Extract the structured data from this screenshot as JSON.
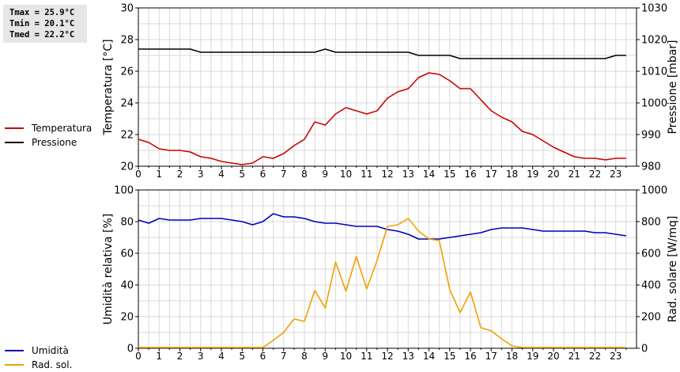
{
  "stats": {
    "tmax": "Tmax = 25.9°C",
    "tmin": "Tmin = 20.1°C",
    "tmed": "Tmed = 22.2°C"
  },
  "colors": {
    "temperature": "#cc0000",
    "pressure": "#000000",
    "humidity": "#0000b4",
    "radiation": "#f0a000",
    "grid": "#d8d8d8"
  },
  "chart_data": [
    {
      "type": "line",
      "x": [
        0,
        0.5,
        1,
        1.5,
        2,
        2.5,
        3,
        3.5,
        4,
        4.5,
        5,
        5.5,
        6,
        6.5,
        7,
        7.5,
        8,
        8.5,
        9,
        9.5,
        10,
        10.5,
        11,
        11.5,
        12,
        12.5,
        13,
        13.5,
        14,
        14.5,
        15,
        15.5,
        16,
        16.5,
        17,
        17.5,
        18,
        18.5,
        19,
        19.5,
        20,
        20.5,
        21,
        21.5,
        22,
        22.5,
        23,
        23.5
      ],
      "series": [
        {
          "name": "Temperatura",
          "axis": "left",
          "values": [
            21.7,
            21.5,
            21.1,
            21.0,
            21.0,
            20.9,
            20.6,
            20.5,
            20.3,
            20.2,
            20.1,
            20.2,
            20.6,
            20.5,
            20.8,
            21.3,
            21.7,
            22.8,
            22.6,
            23.3,
            23.7,
            23.5,
            23.3,
            23.5,
            24.3,
            24.7,
            24.9,
            25.6,
            25.9,
            25.8,
            25.4,
            24.9,
            24.9,
            24.2,
            23.5,
            23.1,
            22.8,
            22.2,
            22.0,
            21.6,
            21.2,
            20.9,
            20.6,
            20.5,
            20.5,
            20.4,
            20.5,
            20.5
          ]
        },
        {
          "name": "Pressione",
          "axis": "right",
          "values": [
            1017,
            1017,
            1017,
            1017,
            1017,
            1017,
            1016,
            1016,
            1016,
            1016,
            1016,
            1016,
            1016,
            1016,
            1016,
            1016,
            1016,
            1016,
            1017,
            1016,
            1016,
            1016,
            1016,
            1016,
            1016,
            1016,
            1016,
            1015,
            1015,
            1015,
            1015,
            1014,
            1014,
            1014,
            1014,
            1014,
            1014,
            1014,
            1014,
            1014,
            1014,
            1014,
            1014,
            1014,
            1014,
            1014,
            1015,
            1015
          ]
        }
      ],
      "xlim": [
        0,
        24
      ],
      "xticks": [
        0,
        1,
        2,
        3,
        4,
        5,
        6,
        7,
        8,
        9,
        10,
        11,
        12,
        13,
        14,
        15,
        16,
        17,
        18,
        19,
        20,
        21,
        22,
        23
      ],
      "ylim_left": [
        20,
        30
      ],
      "yticks_left": [
        20,
        22,
        24,
        26,
        28,
        30
      ],
      "ylim_right": [
        980,
        1030
      ],
      "yticks_right": [
        980,
        990,
        1000,
        1010,
        1020,
        1030
      ],
      "ylabel_left": "Temperatura [°C]",
      "ylabel_right": "Pressione [mbar]",
      "grid": true,
      "legend_position": "left"
    },
    {
      "type": "line",
      "x": [
        0,
        0.5,
        1,
        1.5,
        2,
        2.5,
        3,
        3.5,
        4,
        4.5,
        5,
        5.5,
        6,
        6.5,
        7,
        7.5,
        8,
        8.5,
        9,
        9.5,
        10,
        10.5,
        11,
        11.5,
        12,
        12.5,
        13,
        13.5,
        14,
        14.5,
        15,
        15.5,
        16,
        16.5,
        17,
        17.5,
        18,
        18.5,
        19,
        19.5,
        20,
        20.5,
        21,
        21.5,
        22,
        22.5,
        23,
        23.5
      ],
      "series": [
        {
          "name": "Umidità",
          "axis": "left",
          "values": [
            81,
            79,
            82,
            81,
            81,
            81,
            82,
            82,
            82,
            81,
            80,
            78,
            80,
            85,
            83,
            83,
            82,
            80,
            79,
            79,
            78,
            77,
            77,
            77,
            75,
            74,
            72,
            69,
            69,
            69,
            70,
            71,
            72,
            73,
            75,
            76,
            76,
            76,
            75,
            74,
            74,
            74,
            74,
            74,
            73,
            73,
            72,
            71
          ]
        },
        {
          "name": "Rad. sol.",
          "axis": "right",
          "values": [
            5,
            5,
            5,
            5,
            5,
            5,
            5,
            5,
            5,
            5,
            5,
            5,
            5,
            50,
            100,
            185,
            170,
            365,
            255,
            545,
            360,
            580,
            375,
            555,
            770,
            780,
            820,
            740,
            690,
            680,
            370,
            225,
            355,
            130,
            110,
            60,
            15,
            5,
            5,
            5,
            5,
            5,
            5,
            5,
            5,
            5,
            5,
            5
          ]
        }
      ],
      "xlim": [
        0,
        24
      ],
      "xticks": [
        0,
        1,
        2,
        3,
        4,
        5,
        6,
        7,
        8,
        9,
        10,
        11,
        12,
        13,
        14,
        15,
        16,
        17,
        18,
        19,
        20,
        21,
        22,
        23
      ],
      "ylim_left": [
        0,
        100
      ],
      "yticks_left": [
        0,
        20,
        40,
        60,
        80,
        100
      ],
      "ylim_right": [
        0,
        1000
      ],
      "yticks_right": [
        0,
        200,
        400,
        600,
        800,
        1000
      ],
      "ylabel_left": "Umidità relativa [%]",
      "ylabel_right": "Rad. solare [W/mq]",
      "grid": true,
      "legend_position": "left"
    }
  ]
}
